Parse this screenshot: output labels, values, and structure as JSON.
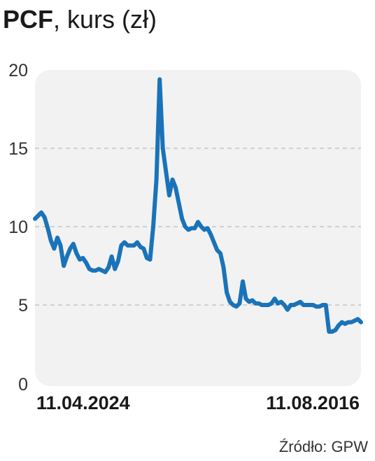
{
  "title": {
    "main": "PCF",
    "suffix": ", kurs (zł)"
  },
  "source": "Źródło: GPW",
  "colors": {
    "line": "#1a73b8",
    "panel": "#f2f2f2",
    "grid": "#bdbdbd",
    "text": "#1a1a1a"
  },
  "chart_data": {
    "type": "line",
    "title": "PCF, kurs (zł)",
    "xlabel": "",
    "ylabel": "",
    "ylim": [
      0,
      20
    ],
    "yticks": [
      0,
      5,
      10,
      15,
      20
    ],
    "x_tick_labels": [
      "11.04.2024",
      "11.08.2016"
    ],
    "grid": "horizontal dashed",
    "series": [
      {
        "values": [
          10.5,
          10.7,
          10.9,
          10.6,
          9.9,
          9.1,
          8.6,
          9.3,
          8.8,
          7.5,
          8.1,
          8.6,
          8.9,
          8.3,
          7.9,
          8.0,
          7.7,
          7.3,
          7.2,
          7.2,
          7.3,
          7.2,
          7.1,
          7.4,
          8.1,
          7.3,
          7.8,
          8.8,
          9.0,
          8.8,
          8.8,
          8.8,
          9.0,
          8.7,
          8.6,
          8.0,
          7.9,
          10.0,
          13.0,
          19.4,
          15.0,
          13.5,
          12.0,
          13.0,
          12.5,
          11.5,
          10.5,
          10.0,
          9.8,
          9.9,
          9.9,
          10.3,
          10.0,
          9.8,
          9.9,
          9.5,
          9.0,
          8.5,
          8.3,
          7.4,
          5.8,
          5.2,
          5.0,
          4.9,
          5.1,
          6.5,
          5.4,
          5.2,
          5.3,
          5.1,
          5.1,
          5.0,
          5.0,
          5.0,
          5.1,
          5.4,
          5.1,
          5.2,
          5.0,
          4.7,
          5.0,
          5.0,
          5.1,
          5.2,
          5.0,
          5.0,
          5.0,
          5.0,
          4.9,
          4.9,
          5.0,
          5.0,
          3.3,
          3.3,
          3.4,
          3.7,
          3.9,
          3.8,
          3.9,
          3.9,
          4.0,
          4.1,
          3.9
        ]
      }
    ]
  }
}
